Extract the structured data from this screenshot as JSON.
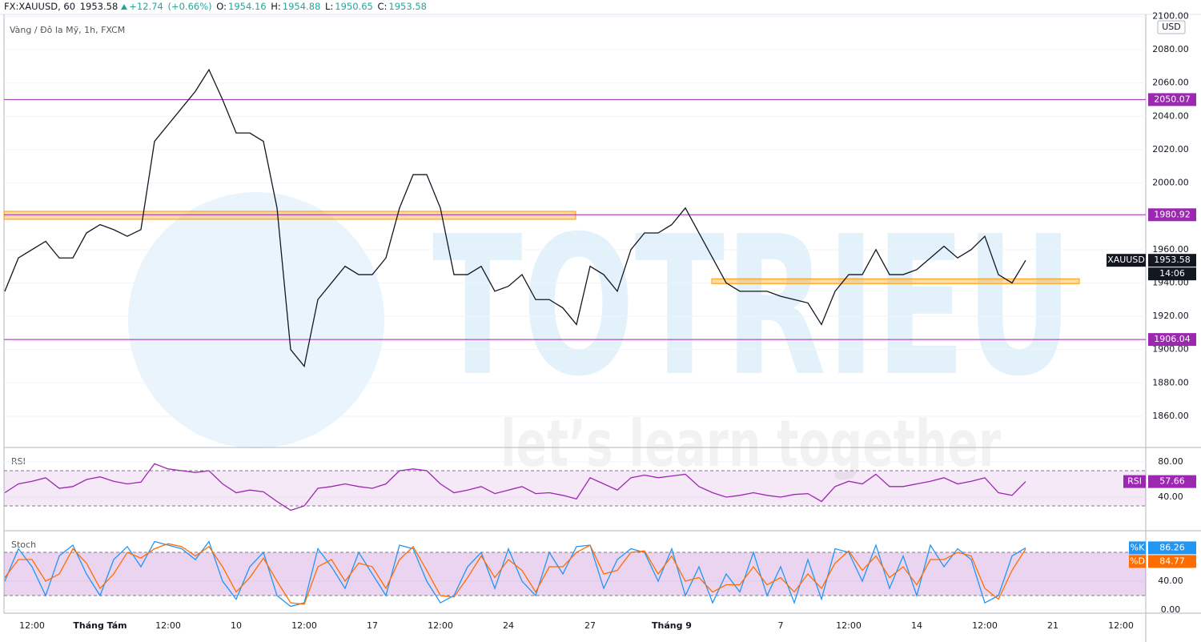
{
  "header": {
    "symbol": "FX:XAUUSD, 60",
    "last": "1953.58",
    "change": "+12.74",
    "change_pct": "(+0.66%)",
    "o_label": "O:",
    "o": "1954.16",
    "h_label": "H:",
    "h": "1954.88",
    "l_label": "L:",
    "l": "1950.65",
    "c_label": "C:",
    "c": "1953.58"
  },
  "watermark": {
    "title": "TOTRIEU",
    "tagline": "let’s learn together"
  },
  "chart_data": [
    {
      "type": "line",
      "subtitle": "Vàng / Đô la Mỹ, 1h, FXCM",
      "currency": "USD",
      "countdown": "14:06",
      "categories": [
        null,
        null,
        "12:00",
        null,
        null,
        null,
        null,
        "Tháng Tám",
        null,
        null,
        null,
        null,
        "12:00",
        null,
        null,
        null,
        null,
        "10",
        null,
        null,
        null,
        null,
        "12:00",
        null,
        null,
        null,
        null,
        "17",
        null,
        null,
        null,
        null,
        "12:00",
        null,
        null,
        null,
        null,
        "24",
        null,
        null,
        null,
        null,
        null,
        "27",
        null,
        null,
        null,
        null,
        null,
        "Tháng 9",
        null,
        null,
        null,
        null,
        null,
        null,
        null,
        "7",
        null,
        null,
        null,
        null,
        "12:00",
        null,
        null,
        null,
        null,
        "14",
        null,
        null,
        null,
        null,
        "12:00",
        null,
        null,
        null,
        null,
        "21",
        null,
        null,
        null,
        null,
        "12:00",
        null
      ],
      "series": [
        {
          "name": "XAUUSD",
          "color": "#131722",
          "values": [
            1935,
            1955,
            1960,
            1965,
            1955,
            1955,
            1970,
            1975,
            1972,
            1968,
            1972,
            2025,
            2035,
            2045,
            2055,
            2068,
            2050,
            2030,
            2030,
            2025,
            1985,
            1900,
            1890,
            1930,
            1940,
            1950,
            1945,
            1945,
            1955,
            1985,
            2005,
            2005,
            1985,
            1945,
            1945,
            1950,
            1935,
            1938,
            1945,
            1930,
            1930,
            1925,
            1915,
            1950,
            1945,
            1935,
            1960,
            1970,
            1970,
            1975,
            1985,
            1970,
            1955,
            1940,
            1935,
            1935,
            1935,
            1932,
            1930,
            1928,
            1915,
            1935,
            1945,
            1945,
            1960,
            1945,
            1945,
            1948,
            1955,
            1962,
            1955,
            1960,
            1968,
            1945,
            1940,
            1953.58,
            null,
            null,
            null,
            null,
            null,
            null,
            null,
            null
          ]
        }
      ],
      "ylim": [
        1841.7,
        2101.2
      ],
      "yticks": [
        {
          "value": 1860,
          "label": "1860.00"
        },
        {
          "value": 1880,
          "label": "1880.00"
        },
        {
          "value": 1900,
          "label": "1900.00"
        },
        {
          "value": 1920,
          "label": "1920.00"
        },
        {
          "value": 1940,
          "label": "1940.00"
        },
        {
          "value": 1960,
          "label": "1960.00"
        },
        {
          "value": 1980,
          "label": "1980.00"
        },
        {
          "value": 2000,
          "label": "2000.00"
        },
        {
          "value": 2020,
          "label": "2020.00"
        },
        {
          "value": 2040,
          "label": "2040.00"
        },
        {
          "value": 2060,
          "label": "2060.00"
        },
        {
          "value": 2080,
          "label": "2080.00"
        },
        {
          "value": 2100,
          "label": "2100.00"
        }
      ],
      "hlines": [
        2050.07,
        1980.92,
        1906.04
      ],
      "hline_color": "#9c27b0",
      "zones": [
        {
          "y": [
            1978.2,
            1983.0
          ],
          "x": [
            0,
            42
          ]
        },
        {
          "y": [
            1939.6,
            1942.5
          ],
          "x": [
            52,
            79
          ]
        }
      ],
      "zone_color": "#ff9800"
    },
    {
      "type": "line",
      "title": "RSI",
      "series": [
        {
          "name": "RSI",
          "color": "#9c27b0",
          "values": [
            45,
            55,
            58,
            62,
            50,
            52,
            60,
            63,
            58,
            55,
            57,
            78,
            72,
            70,
            68,
            70,
            55,
            45,
            48,
            46,
            35,
            25,
            30,
            50,
            52,
            55,
            52,
            50,
            55,
            70,
            72,
            70,
            55,
            45,
            48,
            52,
            44,
            48,
            52,
            44,
            45,
            42,
            38,
            62,
            55,
            48,
            62,
            65,
            62,
            64,
            66,
            52,
            45,
            40,
            42,
            45,
            42,
            40,
            43,
            44,
            35,
            52,
            58,
            55,
            66,
            52,
            52,
            55,
            58,
            62,
            55,
            58,
            62,
            45,
            42,
            57.66,
            null,
            null,
            null,
            null,
            null,
            null,
            null,
            null
          ]
        }
      ],
      "ylim": [
        2.7,
        95.5
      ],
      "yticks": [
        {
          "value": 40,
          "label": "40.00"
        },
        {
          "value": 80,
          "label": "80.00"
        }
      ],
      "band": [
        30,
        70
      ],
      "band_color": "rgba(156,39,176,0.1)"
    },
    {
      "type": "line",
      "title": "Stoch",
      "series": [
        {
          "name": "%K",
          "color": "#2196f3",
          "values": [
            40,
            85,
            60,
            20,
            75,
            90,
            50,
            20,
            70,
            88,
            60,
            95,
            90,
            85,
            70,
            95,
            40,
            15,
            60,
            80,
            20,
            5,
            10,
            85,
            60,
            30,
            80,
            50,
            20,
            90,
            85,
            40,
            10,
            20,
            60,
            80,
            30,
            85,
            40,
            20,
            80,
            50,
            88,
            90,
            30,
            70,
            85,
            80,
            40,
            85,
            20,
            60,
            10,
            50,
            25,
            80,
            20,
            60,
            10,
            70,
            15,
            85,
            80,
            40,
            90,
            30,
            75,
            20,
            90,
            60,
            85,
            70,
            10,
            20,
            75,
            86.26,
            null,
            null,
            null,
            null,
            null,
            null,
            null,
            null
          ]
        },
        {
          "name": "%D",
          "color": "#ff6d00",
          "values": [
            45,
            70,
            70,
            40,
            50,
            85,
            65,
            30,
            50,
            80,
            72,
            85,
            92,
            88,
            75,
            88,
            60,
            25,
            45,
            72,
            40,
            10,
            8,
            60,
            70,
            40,
            65,
            60,
            30,
            70,
            88,
            55,
            20,
            18,
            45,
            75,
            45,
            70,
            55,
            25,
            60,
            60,
            80,
            90,
            50,
            55,
            80,
            82,
            50,
            75,
            40,
            45,
            25,
            35,
            35,
            60,
            35,
            45,
            25,
            50,
            30,
            65,
            82,
            55,
            75,
            45,
            60,
            35,
            70,
            70,
            80,
            75,
            30,
            15,
            55,
            84.77,
            null,
            null,
            null,
            null,
            null,
            null,
            null,
            null
          ]
        }
      ],
      "ylim": [
        -4.4,
        108.9
      ],
      "yticks": [
        {
          "value": 0,
          "label": "0.00"
        },
        {
          "value": 40,
          "label": "40.00"
        }
      ],
      "band": [
        20,
        80
      ],
      "band_color": "rgba(156,39,176,0.2)"
    }
  ]
}
